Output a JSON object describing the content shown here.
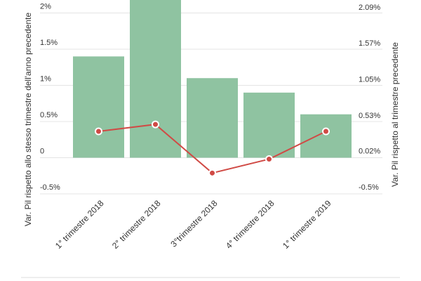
{
  "chart_data": {
    "type": "bar",
    "categories": [
      "1° trimestre 2018",
      "2° trimestre 2018",
      "3°trimestre 2018",
      "4° trimestre 2018",
      "1° trimestre 2019"
    ],
    "series": [
      {
        "type": "bar",
        "color": "#8fc3a1",
        "values": [
          1.4,
          2.3,
          1.1,
          0.9,
          0.6
        ]
      },
      {
        "type": "line",
        "axis": "y2",
        "color": "#d04a45",
        "values": [
          0.4,
          0.5,
          -0.2,
          0.0,
          0.4
        ]
      }
    ],
    "ylabel": "Var. Pil rispetto allo stesso trimestre dell'anno precedente",
    "y2label": "Var. Pil rispetto al trimestre precedente",
    "ylim": [
      -0.5,
      2.18
    ],
    "yticks": [
      {
        "value": -0.5,
        "label": "-0.5%"
      },
      0,
      {
        "value": 0.5,
        "label": "0.5%"
      },
      {
        "value": 1,
        "label": "1%"
      },
      {
        "value": 1.5,
        "label": "1.5%"
      },
      {
        "value": 2,
        "label": "2%"
      }
    ],
    "y2lim": [
      -0.5,
      2.29
    ],
    "y2ticks": [
      {
        "value": -0.5,
        "label": "-0.5%"
      },
      {
        "value": 0.02,
        "label": "0.02%"
      },
      {
        "value": 0.53,
        "label": "0.53%"
      },
      {
        "value": 1.05,
        "label": "1.05%"
      },
      {
        "value": 1.57,
        "label": "1.57%"
      },
      {
        "value": 2.09,
        "label": "2.09%"
      }
    ],
    "grid": true
  }
}
